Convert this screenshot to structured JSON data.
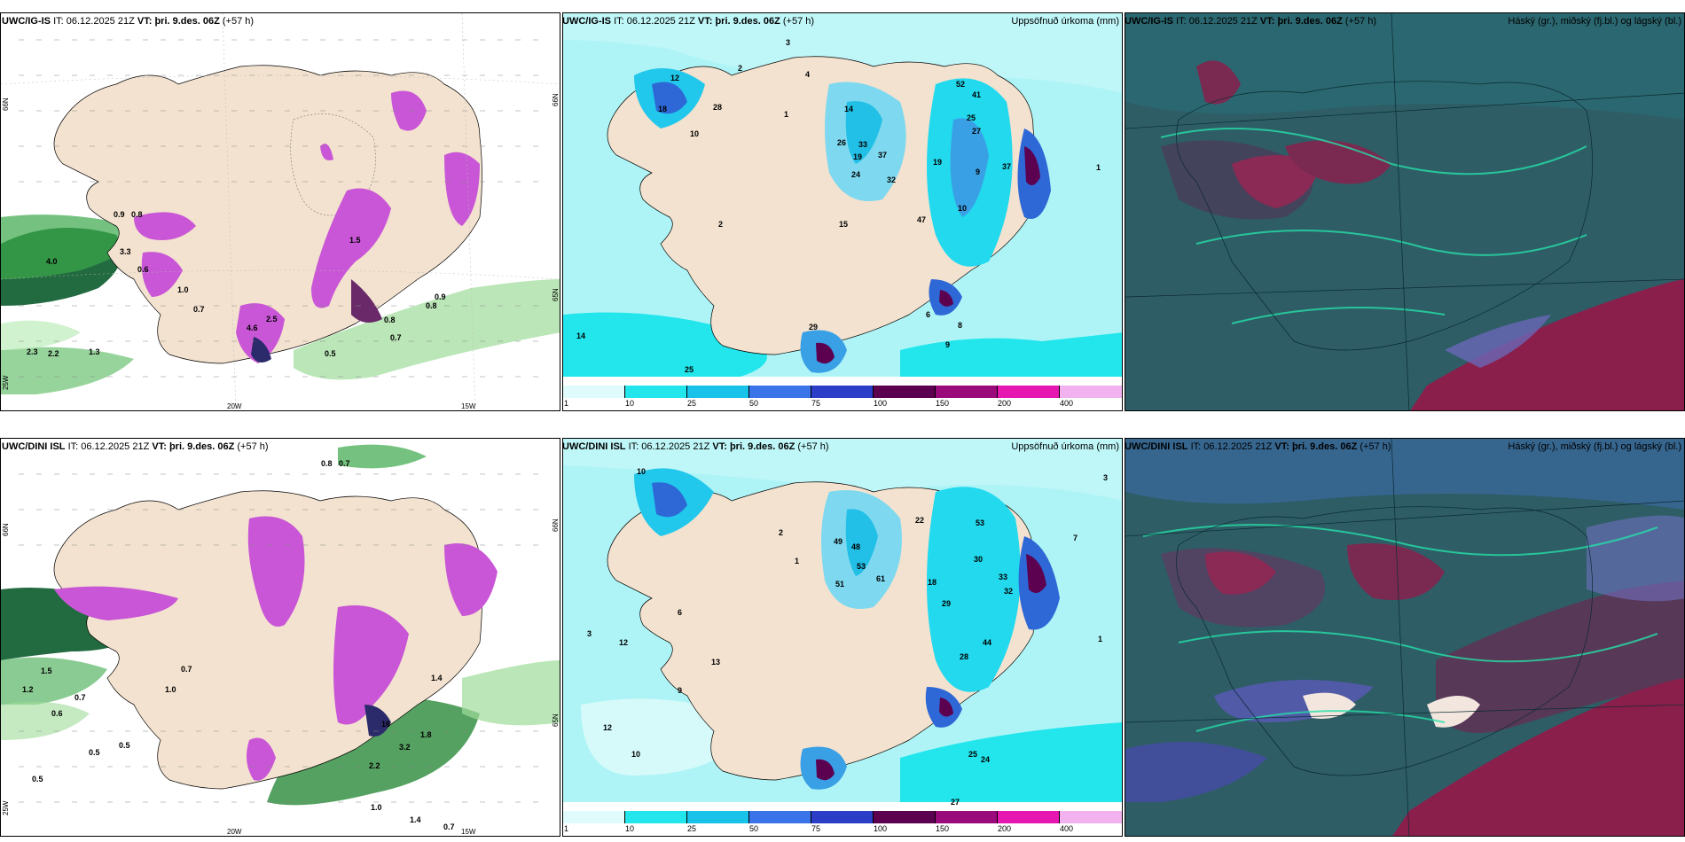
{
  "panels": [
    {
      "model": "UWC/IG-IS",
      "it_label": "IT:",
      "it_value": "06.12.2025 21Z",
      "vt_label": "VT:",
      "vt_value": "þri. 9.des. 06Z",
      "lead": "(+57 h)",
      "variable": ""
    },
    {
      "model": "UWC/IG-IS",
      "it_label": "IT:",
      "it_value": "06.12.2025 21Z",
      "vt_label": "VT:",
      "vt_value": "þri. 9.des. 06Z",
      "lead": "(+57 h)",
      "variable": "Uppsöfnuð úrkoma (mm)"
    },
    {
      "model": "UWC/IG-IS",
      "it_label": "IT:",
      "it_value": "06.12.2025 21Z",
      "vt_label": "VT:",
      "vt_value": "þri. 9.des. 06Z",
      "lead": "(+57 h)",
      "variable": "Háský (gr.), miðský (fj.bl.) og lágský (bl.)"
    },
    {
      "model": "UWC/DINI ISL",
      "it_label": "IT:",
      "it_value": "06.12.2025 21Z",
      "vt_label": "VT:",
      "vt_value": "þri. 9.des. 06Z",
      "lead": "(+57 h)",
      "variable": ""
    },
    {
      "model": "UWC/DINI ISL",
      "it_label": "IT:",
      "it_value": "06.12.2025 21Z",
      "vt_label": "VT:",
      "vt_value": "þri. 9.des. 06Z",
      "lead": "(+57 h)",
      "variable": "Uppsöfnuð úrkoma (mm)"
    },
    {
      "model": "UWC/DINI ISL",
      "it_label": "IT:",
      "it_value": "06.12.2025 21Z",
      "vt_label": "VT:",
      "vt_value": "þri. 9.des. 06Z",
      "lead": "(+57 h)",
      "variable": "Háský (gr.), miðský (fj.bl.) og lágský (bl.)"
    }
  ],
  "axis_labels": {
    "lat_66": "66N",
    "lat_65": "65N",
    "lon_20": "20W",
    "lon_15": "15W",
    "lon_25": "25W"
  },
  "colorbar": {
    "ticks": [
      "1",
      "10",
      "25",
      "50",
      "75",
      "100",
      "150",
      "200",
      "400"
    ],
    "colors": [
      "#e0fbfb",
      "#22e6ec",
      "#18c2e8",
      "#3a74e8",
      "#2c3dc8",
      "#5c0050",
      "#9a0a7a",
      "#e616b0",
      "#f2b2f0"
    ]
  },
  "ig_precip_values": [
    "0.9",
    "0.8",
    "0.6",
    "4.0",
    "3.3",
    "0.8",
    "1.0",
    "0.7",
    "2.5",
    "4.6",
    "0.5",
    "2.2",
    "2.3",
    "1.3",
    "0.8",
    "0.7",
    "0.9",
    "1.5"
  ],
  "ig_accum_values": [
    "3",
    "4",
    "2",
    "12",
    "18",
    "28",
    "10",
    "1",
    "14",
    "26",
    "33",
    "37",
    "19",
    "24",
    "32",
    "52",
    "41",
    "25",
    "27",
    "19",
    "37",
    "9",
    "10",
    "47",
    "15",
    "2",
    "14",
    "25",
    "8",
    "29",
    "1",
    "9",
    "6"
  ],
  "dini_precip_values": [
    "0.8",
    "0.7",
    "1.5",
    "1.0",
    "1.2",
    "0.7",
    "0.6",
    "0.5",
    "0.7",
    "1.4",
    "1.8",
    "3.2",
    "2.2",
    "1.0",
    "0.5",
    "1.4",
    "0.7",
    "0.5",
    "16"
  ],
  "dini_accum_values": [
    "10",
    "3",
    "12",
    "1",
    "2",
    "6",
    "13",
    "9",
    "12",
    "10",
    "49",
    "48",
    "53",
    "51",
    "61",
    "22",
    "18",
    "29",
    "53",
    "30",
    "33",
    "32",
    "44",
    "28",
    "25",
    "24",
    "27",
    "3",
    "7",
    "1"
  ]
}
